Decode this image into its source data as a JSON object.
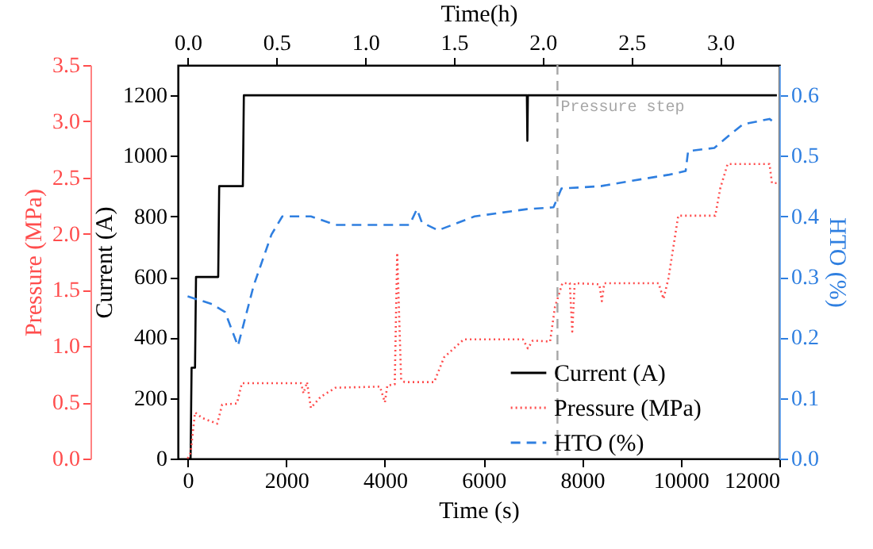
{
  "chart_data": {
    "type": "line",
    "xlabel": "Time (s)",
    "x2label": "Time(h)",
    "ylabel": "Current (A)",
    "y2label": "HTO (%)",
    "y3label": "Pressure (MPa)",
    "xlim": [
      -200,
      12000
    ],
    "xticks": [
      0,
      2000,
      4000,
      6000,
      8000,
      10000,
      12000
    ],
    "x2lim": [
      -0.056,
      3.333
    ],
    "x2ticks": [
      {
        "value": 0,
        "label": "0.0"
      },
      0.5,
      {
        "value": 1,
        "label": "1.0"
      },
      1.5,
      {
        "value": 2,
        "label": "2.0"
      },
      2.5,
      {
        "value": 3,
        "label": "3.0"
      }
    ],
    "ylim": [
      0,
      1300
    ],
    "yticks": [
      0,
      200,
      400,
      600,
      800,
      1000,
      1200
    ],
    "y2lim": [
      0,
      0.65
    ],
    "y2ticks": [
      {
        "value": 0,
        "label": "0.0"
      },
      0.1,
      0.2,
      0.3,
      0.4,
      0.5,
      0.6
    ],
    "y3lim": [
      0,
      3.5
    ],
    "y3ticks": [
      {
        "value": 0,
        "label": "0.0"
      },
      0.5,
      {
        "value": 1,
        "label": "1.0"
      },
      1.5,
      {
        "value": 2,
        "label": "2.0"
      },
      2.5,
      {
        "value": 3,
        "label": "3.0"
      },
      3.5
    ],
    "legend": "bottom right",
    "grid": false,
    "ref_lines": [
      {
        "axis": "x",
        "value": 7500,
        "label": "Pressure step",
        "color": "#a6a6a6",
        "line_style": "dashed"
      }
    ],
    "series": [
      {
        "name": "Current (A)",
        "color": "#000000",
        "line_style": "solid",
        "axis": "y",
        "x": [
          0,
          60,
          80,
          150,
          170,
          620,
          640,
          1120,
          1140,
          6880,
          6890,
          6900,
          11950
        ],
        "values": [
          0,
          0,
          300,
          300,
          600,
          600,
          900,
          900,
          1200,
          1200,
          1050,
          1200,
          1200
        ]
      },
      {
        "name": "Pressure (MPa)",
        "color": "#ff4d4d",
        "line_style": "dotted",
        "axis": "y3",
        "x": [
          0,
          60,
          150,
          300,
          600,
          700,
          1000,
          1100,
          2300,
          2350,
          2420,
          2500,
          2700,
          3000,
          3900,
          4000,
          4050,
          4200,
          4250,
          4330,
          4400,
          5000,
          5200,
          5600,
          6800,
          6900,
          7000,
          7350,
          7450,
          7600,
          7750,
          7800,
          7850,
          8350,
          8400,
          8450,
          9550,
          9650,
          9750,
          9950,
          10700,
          10800,
          10950,
          11800,
          11850,
          11950
        ],
        "values": [
          0,
          0.05,
          0.41,
          0.36,
          0.31,
          0.48,
          0.49,
          0.67,
          0.67,
          0.58,
          0.68,
          0.45,
          0.55,
          0.63,
          0.64,
          0.5,
          0.65,
          0.66,
          1.83,
          0.7,
          0.68,
          0.68,
          0.9,
          1.06,
          1.06,
          0.98,
          1.05,
          1.04,
          1.35,
          1.56,
          1.56,
          1.13,
          1.56,
          1.55,
          1.4,
          1.56,
          1.56,
          1.42,
          1.6,
          2.16,
          2.16,
          2.4,
          2.62,
          2.62,
          2.45,
          2.45
        ]
      },
      {
        "name": "HTO (%)",
        "color": "#2f7fe0",
        "line_style": "dashed",
        "axis": "y2",
        "x": [
          0,
          500,
          760,
          1020,
          1340,
          1700,
          1920,
          2500,
          3000,
          4500,
          4650,
          4750,
          5080,
          5820,
          6880,
          7420,
          7580,
          8380,
          9020,
          9770,
          10100,
          10150,
          10680,
          11000,
          11260,
          11800,
          11950
        ],
        "values": [
          0.268,
          0.255,
          0.242,
          0.186,
          0.286,
          0.37,
          0.4,
          0.4,
          0.386,
          0.386,
          0.412,
          0.39,
          0.377,
          0.4,
          0.412,
          0.415,
          0.446,
          0.45,
          0.459,
          0.469,
          0.475,
          0.508,
          0.513,
          0.535,
          0.552,
          0.561,
          0.552
        ]
      }
    ]
  }
}
